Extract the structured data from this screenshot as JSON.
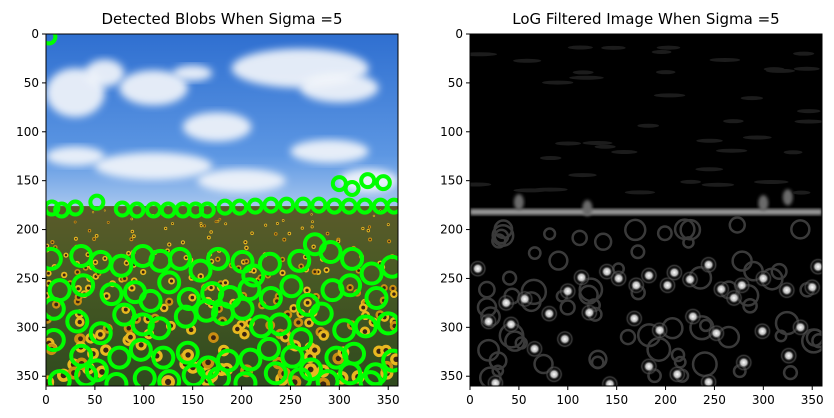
{
  "chart_data": [
    {
      "type": "image",
      "title": "Detected Blobs When Sigma =5",
      "xlim": [
        0,
        360
      ],
      "ylim": [
        360,
        0
      ],
      "xticks": [
        0,
        50,
        100,
        150,
        200,
        250,
        300,
        350
      ],
      "yticks": [
        0,
        50,
        100,
        150,
        200,
        250,
        300,
        350
      ],
      "content": "sunflower field photo with green circle overlays",
      "circle_color": "#00ff00",
      "blob_centers": [
        [
          3,
          3
        ],
        [
          52,
          172
        ],
        [
          6,
          178
        ],
        [
          16,
          180
        ],
        [
          30,
          178
        ],
        [
          78,
          179
        ],
        [
          93,
          180
        ],
        [
          110,
          180
        ],
        [
          125,
          180
        ],
        [
          140,
          180
        ],
        [
          153,
          180
        ],
        [
          165,
          180
        ],
        [
          183,
          177
        ],
        [
          198,
          177
        ],
        [
          214,
          176
        ],
        [
          230,
          175
        ],
        [
          246,
          175
        ],
        [
          263,
          175
        ],
        [
          279,
          175
        ],
        [
          295,
          176
        ],
        [
          310,
          176
        ],
        [
          326,
          176
        ],
        [
          342,
          176
        ],
        [
          356,
          176
        ],
        [
          300,
          153
        ],
        [
          313,
          158
        ],
        [
          329,
          150
        ],
        [
          345,
          152
        ],
        [
          5,
          230
        ],
        [
          36,
          227
        ],
        [
          56,
          233
        ],
        [
          77,
          237
        ],
        [
          99,
          227
        ],
        [
          117,
          232
        ],
        [
          137,
          230
        ],
        [
          158,
          242
        ],
        [
          176,
          230
        ],
        [
          201,
          233
        ],
        [
          212,
          247
        ],
        [
          229,
          235
        ],
        [
          259,
          232
        ],
        [
          275,
          215
        ],
        [
          291,
          223
        ],
        [
          313,
          230
        ],
        [
          333,
          245
        ],
        [
          354,
          238
        ],
        [
          14,
          262
        ],
        [
          38,
          257
        ],
        [
          67,
          266
        ],
        [
          91,
          264
        ],
        [
          107,
          273
        ],
        [
          126,
          254
        ],
        [
          146,
          271
        ],
        [
          170,
          265
        ],
        [
          188,
          269
        ],
        [
          208,
          261
        ],
        [
          230,
          270
        ],
        [
          251,
          258
        ],
        [
          268,
          277
        ],
        [
          293,
          262
        ],
        [
          311,
          257
        ],
        [
          338,
          270
        ],
        [
          8,
          281
        ],
        [
          32,
          294
        ],
        [
          56,
          306
        ],
        [
          80,
          287
        ],
        [
          99,
          297
        ],
        [
          116,
          301
        ],
        [
          143,
          289
        ],
        [
          164,
          283
        ],
        [
          181,
          286
        ],
        [
          201,
          281
        ],
        [
          220,
          299
        ],
        [
          239,
          297
        ],
        [
          261,
          312
        ],
        [
          282,
          286
        ],
        [
          305,
          303
        ],
        [
          327,
          299
        ],
        [
          350,
          296
        ],
        [
          8,
          313
        ],
        [
          36,
          329
        ],
        [
          52,
          344
        ],
        [
          75,
          331
        ],
        [
          97,
          323
        ],
        [
          120,
          331
        ],
        [
          145,
          326
        ],
        [
          166,
          341
        ],
        [
          186,
          334
        ],
        [
          209,
          333
        ],
        [
          228,
          322
        ],
        [
          252,
          330
        ],
        [
          271,
          343
        ],
        [
          297,
          331
        ],
        [
          315,
          327
        ],
        [
          337,
          348
        ],
        [
          355,
          334
        ],
        [
          14,
          355
        ],
        [
          41,
          349
        ],
        [
          72,
          358
        ],
        [
          101,
          352
        ],
        [
          126,
          355
        ],
        [
          151,
          349
        ],
        [
          177,
          352
        ],
        [
          204,
          357
        ],
        [
          235,
          347
        ],
        [
          260,
          353
        ],
        [
          288,
          355
        ],
        [
          311,
          347
        ],
        [
          332,
          356
        ]
      ]
    },
    {
      "type": "image",
      "title": "LoG Filtered Image When Sigma =5",
      "xlim": [
        0,
        360
      ],
      "ylim": [
        360,
        0
      ],
      "xticks": [
        0,
        50,
        100,
        150,
        200,
        250,
        300,
        350
      ],
      "yticks": [
        0,
        50,
        100,
        150,
        200,
        250,
        300,
        350
      ],
      "content": "grayscale LoG filter response",
      "bright_spots": [
        [
          8,
          240
        ],
        [
          37,
          275
        ],
        [
          56,
          271
        ],
        [
          81,
          286
        ],
        [
          100,
          263
        ],
        [
          114,
          249
        ],
        [
          140,
          243
        ],
        [
          152,
          250
        ],
        [
          170,
          257
        ],
        [
          183,
          247
        ],
        [
          202,
          257
        ],
        [
          209,
          244
        ],
        [
          225,
          251
        ],
        [
          244,
          236
        ],
        [
          257,
          261
        ],
        [
          278,
          257
        ],
        [
          300,
          250
        ],
        [
          324,
          262
        ],
        [
          350,
          259
        ],
        [
          19,
          294
        ],
        [
          42,
          297
        ],
        [
          66,
          322
        ],
        [
          97,
          312
        ],
        [
          122,
          285
        ],
        [
          168,
          291
        ],
        [
          194,
          303
        ],
        [
          228,
          289
        ],
        [
          252,
          306
        ],
        [
          270,
          270
        ],
        [
          299,
          304
        ],
        [
          338,
          300
        ],
        [
          356,
          238
        ],
        [
          86,
          348
        ],
        [
          183,
          340
        ],
        [
          212,
          348
        ],
        [
          244,
          356
        ],
        [
          280,
          336
        ],
        [
          326,
          329
        ],
        [
          26,
          357
        ],
        [
          143,
          358
        ]
      ]
    }
  ]
}
